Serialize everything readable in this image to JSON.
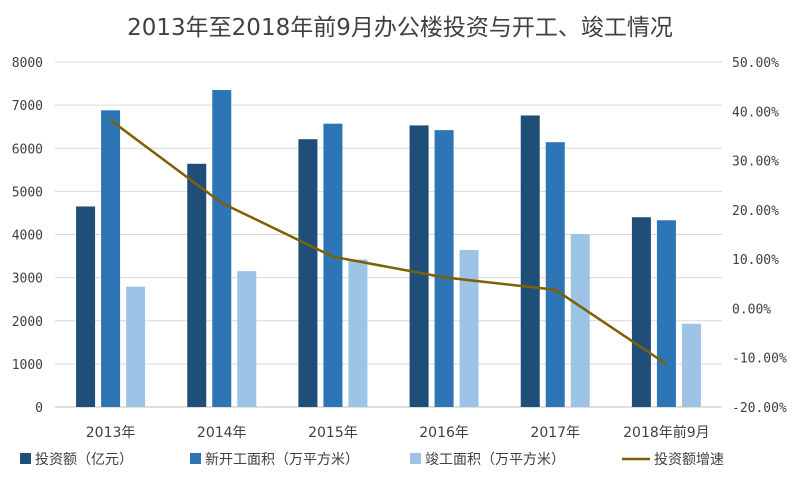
{
  "chart_data": {
    "type": "bar",
    "title": "2013年至2018年前9月办公楼投资与开工、竣工情况",
    "categories": [
      "2013年",
      "2014年",
      "2015年",
      "2016年",
      "2017年",
      "2018年前9月"
    ],
    "series": [
      {
        "name": "投资额（亿元）",
        "type": "bar",
        "axis": "left",
        "color": "#1f4e79",
        "values": [
          4650,
          5640,
          6210,
          6530,
          6760,
          4400
        ]
      },
      {
        "name": "新开工面积（万平方米）",
        "type": "bar",
        "axis": "left",
        "color": "#2e75b6",
        "values": [
          6880,
          7350,
          6570,
          6420,
          6140,
          4330
        ]
      },
      {
        "name": "竣工面积（万平方米）",
        "type": "bar",
        "axis": "left",
        "color": "#9dc3e6",
        "values": [
          2790,
          3150,
          3420,
          3640,
          4010,
          1930
        ]
      },
      {
        "name": "投资额增速",
        "type": "line",
        "axis": "right",
        "color": "#7f6000",
        "values": [
          38.2,
          21.4,
          10.5,
          6.3,
          3.8,
          -11.3
        ]
      }
    ],
    "y_left": {
      "min": 0,
      "max": 8000,
      "ticks": [
        "0",
        "1000",
        "2000",
        "3000",
        "4000",
        "5000",
        "6000",
        "7000",
        "8000"
      ]
    },
    "y_right": {
      "min": -20,
      "max": 50,
      "ticks": [
        "-20.00%",
        "-10.00%",
        "0.00%",
        "10.00%",
        "20.00%",
        "30.00%",
        "40.00%",
        "50.00%"
      ]
    },
    "grid": true,
    "legend_position": "bottom"
  }
}
